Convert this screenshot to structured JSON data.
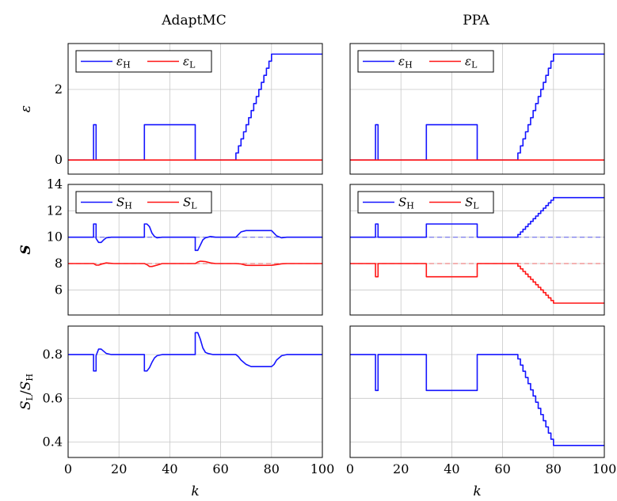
{
  "chart_data": {
    "type": "line",
    "columns": [
      "AdaptMC",
      "PPA"
    ],
    "x_tick_labels": [
      "0",
      "20",
      "40",
      "60",
      "80",
      "100"
    ],
    "xlabel": "k",
    "xlim": [
      0,
      100
    ],
    "x_ticks": [
      0,
      20,
      40,
      60,
      80,
      100
    ],
    "colors": {
      "H": "#1414ff",
      "L": "#ff1414"
    },
    "rows": [
      {
        "key": "eps",
        "ylabel": "ε",
        "ylim": [
          -0.4,
          3.3
        ],
        "y_ticks": [
          0,
          2
        ],
        "y_tick_labels": [
          "0",
          "2"
        ],
        "legend": {
          "H": "εH",
          "L": "εL"
        }
      },
      {
        "key": "S",
        "ylabel": "S",
        "ylim": [
          4.1,
          14
        ],
        "y_ticks": [
          6,
          8,
          10,
          12,
          14
        ],
        "y_tick_labels": [
          "6",
          "8",
          "10",
          "12",
          "14"
        ],
        "legend": {
          "H": "SH",
          "L": "SL"
        }
      },
      {
        "key": "ratio",
        "ylabel": "SL/SH",
        "ylim": [
          0.33,
          0.93
        ],
        "y_ticks": [
          0.4,
          0.6,
          0.8
        ],
        "y_tick_labels": [
          "0.4",
          "0.6",
          "0.8"
        ],
        "legend": null
      }
    ],
    "panels": [
      {
        "column": "AdaptMC",
        "row": "eps",
        "series": [
          {
            "name": "εH",
            "color": "#1414ff",
            "x": [
              0,
              10,
              10,
              11,
              11,
              30,
              30,
              50,
              50,
              66,
              66,
              80,
              80,
              100
            ],
            "y": [
              0,
              0,
              1,
              1,
              0,
              0,
              1,
              1,
              0,
              0,
              0.2,
              3,
              3,
              3
            ],
            "step": true
          },
          {
            "name": "εL",
            "color": "#ff1414",
            "x": [
              0,
              100
            ],
            "y": [
              0,
              0
            ]
          }
        ]
      },
      {
        "column": "PPA",
        "row": "eps",
        "series": [
          {
            "name": "εH",
            "color": "#1414ff",
            "x": [
              0,
              10,
              10,
              11,
              11,
              30,
              30,
              50,
              50,
              66,
              66,
              80,
              80,
              100
            ],
            "y": [
              0,
              0,
              1,
              1,
              0,
              0,
              1,
              1,
              0,
              0,
              0.2,
              3,
              3,
              3
            ],
            "step": true
          },
          {
            "name": "εL",
            "color": "#ff1414",
            "x": [
              0,
              100
            ],
            "y": [
              0,
              0
            ]
          }
        ]
      },
      {
        "column": "AdaptMC",
        "row": "S",
        "reference_lines": [
          {
            "y": 10,
            "color": "#1414ff"
          },
          {
            "y": 8,
            "color": "#ff1414"
          }
        ],
        "series": [
          {
            "name": "SH",
            "color": "#1414ff",
            "x": [
              0,
              10,
              10,
              11,
              11,
              12,
              13,
              14,
              15,
              17,
              20,
              30,
              30,
              31,
              32,
              33,
              34,
              35,
              37,
              40,
              50,
              50,
              51,
              52,
              53,
              54,
              56,
              58,
              60,
              66,
              67,
              68,
              70,
              72,
              74,
              78,
              80,
              81,
              82,
              84,
              86,
              88,
              100
            ],
            "y": [
              10,
              10,
              11,
              11,
              9.9,
              9.6,
              9.6,
              9.8,
              9.95,
              10,
              10,
              10,
              11,
              11,
              10.8,
              10.3,
              10.05,
              9.95,
              10,
              10,
              10,
              9,
              9,
              9.4,
              9.8,
              9.95,
              10.05,
              10,
              10,
              10,
              10.2,
              10.4,
              10.5,
              10.5,
              10.5,
              10.5,
              10.5,
              10.3,
              10.1,
              9.95,
              10,
              10,
              10
            ]
          },
          {
            "name": "SL",
            "color": "#ff1414",
            "x": [
              0,
              10,
              11,
              12,
              13,
              15,
              18,
              20,
              30,
              31,
              32,
              33,
              35,
              37,
              40,
              50,
              51,
              52,
              54,
              56,
              58,
              60,
              66,
              68,
              70,
              72,
              80,
              82,
              84,
              86,
              100
            ],
            "y": [
              8,
              8,
              7.88,
              7.88,
              7.95,
              8.05,
              8,
              8,
              8,
              7.92,
              7.78,
              7.78,
              7.88,
              8,
              8,
              8,
              8.12,
              8.18,
              8.15,
              8.05,
              8,
              8,
              8,
              7.97,
              7.87,
              7.86,
              7.87,
              7.92,
              7.98,
              8,
              8
            ]
          }
        ]
      },
      {
        "column": "PPA",
        "row": "S",
        "reference_lines": [
          {
            "y": 10,
            "color": "#1414ff"
          },
          {
            "y": 8,
            "color": "#ff1414"
          }
        ],
        "series": [
          {
            "name": "SH",
            "color": "#1414ff",
            "x": [
              0,
              10,
              10,
              11,
              11,
              30,
              30,
              50,
              50,
              66,
              66,
              80,
              80,
              100
            ],
            "y": [
              10,
              10,
              11,
              11,
              10,
              10,
              11,
              11,
              10,
              10,
              10.2,
              13,
              13,
              13
            ],
            "step": true
          },
          {
            "name": "SL",
            "color": "#ff1414",
            "x": [
              0,
              10,
              10,
              11,
              11,
              30,
              30,
              50,
              50,
              66,
              66,
              80,
              80,
              100
            ],
            "y": [
              8,
              8,
              7,
              7,
              8,
              8,
              7,
              7,
              8,
              8,
              7.8,
              5,
              5,
              5
            ],
            "step": true
          }
        ]
      },
      {
        "column": "AdaptMC",
        "row": "ratio",
        "series": [
          {
            "name": "SL/SH",
            "color": "#1414ff",
            "x": [
              0,
              10,
              10,
              11,
              11,
              12,
              13,
              14,
              15,
              17,
              20,
              30,
              30,
              31,
              32,
              33,
              34,
              35,
              37,
              40,
              50,
              50,
              51,
              52,
              53,
              54,
              55,
              57,
              60,
              66,
              67,
              68,
              70,
              72,
              74,
              78,
              80,
              81,
              82,
              84,
              86,
              88,
              100
            ],
            "y": [
              0.8,
              0.8,
              0.725,
              0.725,
              0.795,
              0.825,
              0.825,
              0.815,
              0.805,
              0.8,
              0.8,
              0.8,
              0.725,
              0.725,
              0.74,
              0.765,
              0.785,
              0.795,
              0.8,
              0.8,
              0.8,
              0.9,
              0.9,
              0.87,
              0.83,
              0.81,
              0.805,
              0.8,
              0.8,
              0.8,
              0.79,
              0.775,
              0.755,
              0.745,
              0.745,
              0.745,
              0.745,
              0.755,
              0.775,
              0.795,
              0.8,
              0.8,
              0.8
            ]
          }
        ]
      },
      {
        "column": "PPA",
        "row": "ratio",
        "series": [
          {
            "name": "SL/SH",
            "color": "#1414ff",
            "x": [
              0,
              10,
              10,
              11,
              11,
              30,
              30,
              50,
              50,
              66,
              66,
              80,
              80,
              100
            ],
            "y": [
              0.8,
              0.8,
              0.636,
              0.636,
              0.8,
              0.8,
              0.636,
              0.636,
              0.8,
              0.8,
              0.78,
              0.385,
              0.385,
              0.385
            ],
            "step": true
          }
        ]
      }
    ]
  }
}
